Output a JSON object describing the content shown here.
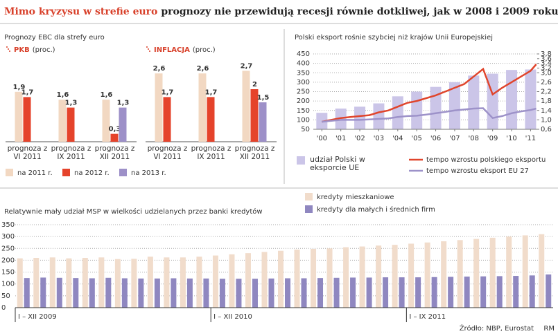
{
  "header": {
    "title_lead": "Mimo kryzysu w strefie euro",
    "title_rest": "prognozy nie przewidują recesji równie dotkliwej, jak w 2008 i 2009 roku"
  },
  "chart_data": [
    {
      "type": "panel-bar",
      "title": "Prognozy EBC dla strefy euro",
      "series": [
        {
          "name": "na 2011 r.",
          "color": "#f2d8c2"
        },
        {
          "name": "na 2012 r.",
          "color": "#e5432b"
        },
        {
          "name": "na 2013 r.",
          "color": "#9d90c8"
        }
      ],
      "panels": [
        {
          "label": "PKB",
          "unit": "(proc.)",
          "categories": [
            "prognoza z VI 2011",
            "prognoza z IX 2011",
            "prognoza z XII 2011"
          ],
          "values": [
            [
              1.9,
              1.6,
              1.6
            ],
            [
              1.7,
              1.3,
              0.3
            ],
            [
              null,
              null,
              1.3
            ]
          ],
          "value_labels": [
            [
              "1,9",
              "1,6",
              "1,6"
            ],
            [
              "1,7",
              "1,3",
              "0,3"
            ],
            [
              null,
              null,
              "1,3"
            ]
          ]
        },
        {
          "label": "INFLACJA",
          "unit": "(proc.)",
          "categories": [
            "prognoza z VI 2011",
            "prognoza z IX 2011",
            "prognoza z XII 2011"
          ],
          "values": [
            [
              2.6,
              2.6,
              2.7
            ],
            [
              1.7,
              1.7,
              2
            ],
            [
              null,
              null,
              1.5
            ]
          ],
          "value_labels": [
            [
              "2,6",
              "2,6",
              "2,7"
            ],
            [
              "1,7",
              "1,7",
              "2"
            ],
            [
              null,
              null,
              "1,5"
            ]
          ]
        }
      ]
    },
    {
      "type": "bar-line",
      "title": "Polski eksport rośnie szybciej niż krajów Unii Europejskiej",
      "xlim": [
        1999.55,
        2011.35
      ],
      "xticks": [
        {
          "value": 2000,
          "label": "'00"
        },
        {
          "value": 2001,
          "label": "'01"
        },
        {
          "value": 2002,
          "label": "'02"
        },
        {
          "value": 2003,
          "label": "'03"
        },
        {
          "value": 2004,
          "label": "'04"
        },
        {
          "value": 2005,
          "label": "'05"
        },
        {
          "value": 2006,
          "label": "'06"
        },
        {
          "value": 2007,
          "label": "'07"
        },
        {
          "value": 2008,
          "label": "'08"
        },
        {
          "value": 2009,
          "label": "'09"
        },
        {
          "value": 2010,
          "label": "'10"
        },
        {
          "value": 2011,
          "label": "'11"
        }
      ],
      "ylim": [
        50,
        450
      ],
      "yticks": [
        50,
        100,
        150,
        200,
        250,
        300,
        350,
        400,
        450
      ],
      "y2lim": [
        0.6,
        3.8
      ],
      "y2ticks": [
        {
          "value": 0.6,
          "label": "0,6"
        },
        {
          "value": 1.0,
          "label": "1,0"
        },
        {
          "value": 1.4,
          "label": "1,4"
        },
        {
          "value": 1.8,
          "label": "1,8"
        },
        {
          "value": 2.2,
          "label": "2,2"
        },
        {
          "value": 2.6,
          "label": "2,6"
        },
        {
          "value": 3.0,
          "label": "3,0"
        },
        {
          "value": 3.2,
          "label": "3,2"
        },
        {
          "value": 3.4,
          "label": "3,4"
        },
        {
          "value": 3.6,
          "label": "3,6"
        },
        {
          "value": 3.8,
          "label": "3,8"
        }
      ],
      "grid": true,
      "series": [
        {
          "name": "udział Polski w eksporcie UE",
          "kind": "bar",
          "axis": "y2",
          "color": "#cbc5e8",
          "x": [
            2000,
            2001,
            2002,
            2003,
            2004,
            2005,
            2006,
            2007,
            2008,
            2009,
            2010,
            2011
          ],
          "values": [
            1.3,
            1.48,
            1.56,
            1.7,
            2.0,
            2.2,
            2.4,
            2.6,
            2.88,
            2.96,
            3.12,
            3.14
          ]
        },
        {
          "name": "tempo wzrostu polskiego eksportu",
          "kind": "line",
          "color": "#e0452c",
          "x": [
            2000,
            2000.5,
            2001,
            2001.5,
            2002,
            2002.5,
            2003,
            2003.5,
            2004,
            2004.5,
            2005,
            2005.5,
            2006,
            2006.5,
            2007,
            2007.5,
            2008,
            2008.5,
            2009,
            2009.5,
            2010,
            2010.5,
            2011,
            2011.3
          ],
          "values": [
            90,
            100,
            110,
            115,
            120,
            125,
            140,
            150,
            170,
            190,
            200,
            215,
            230,
            250,
            270,
            290,
            330,
            370,
            235,
            270,
            300,
            330,
            360,
            395
          ]
        },
        {
          "name": "tempo wzrostu eksport EU 27",
          "kind": "line",
          "color": "#9d92c9",
          "x": [
            2000,
            2000.5,
            2001,
            2001.5,
            2002,
            2002.5,
            2003,
            2003.5,
            2004,
            2004.5,
            2005,
            2005.5,
            2006,
            2006.5,
            2007,
            2007.5,
            2008,
            2008.5,
            2009,
            2009.5,
            2010,
            2010.5,
            2011,
            2011.3
          ],
          "values": [
            90,
            95,
            100,
            100,
            100,
            102,
            105,
            108,
            115,
            120,
            122,
            128,
            135,
            142,
            150,
            155,
            160,
            162,
            110,
            120,
            135,
            145,
            152,
            160
          ]
        }
      ]
    },
    {
      "type": "grouped-bar",
      "title": "Relatywnie mały udział MSP w wielkości udzielanych przez banki kredytów",
      "ylim": [
        0,
        350
      ],
      "yticks": [
        0,
        50,
        100,
        150,
        200,
        250,
        300,
        350
      ],
      "grid": true,
      "groups": [
        {
          "label": "I – XII 2009",
          "size": 12
        },
        {
          "label": "I – XII 2010",
          "size": 12
        },
        {
          "label": "I – IX 2011",
          "size": 9
        }
      ],
      "series": [
        {
          "name": "kredyty mieszkaniowe",
          "color": "#f1dccb",
          "values": [
            208,
            210,
            212,
            208,
            210,
            212,
            205,
            206,
            215,
            212,
            212,
            215,
            220,
            225,
            230,
            235,
            240,
            245,
            248,
            250,
            255,
            258,
            262,
            265,
            270,
            275,
            280,
            285,
            290,
            295,
            300,
            305,
            310
          ]
        },
        {
          "name": "kredyty dla małych i średnich firm",
          "color": "#8f87c0",
          "values": [
            125,
            127,
            126,
            125,
            124,
            126,
            124,
            123,
            123,
            124,
            123,
            123,
            122,
            122,
            122,
            123,
            124,
            124,
            125,
            126,
            127,
            127,
            128,
            128,
            128,
            129,
            130,
            131,
            132,
            133,
            134,
            136,
            140
          ]
        }
      ]
    }
  ],
  "footer": {
    "source": "Źródło: NBP, Eurostat",
    "credit": "RM"
  }
}
